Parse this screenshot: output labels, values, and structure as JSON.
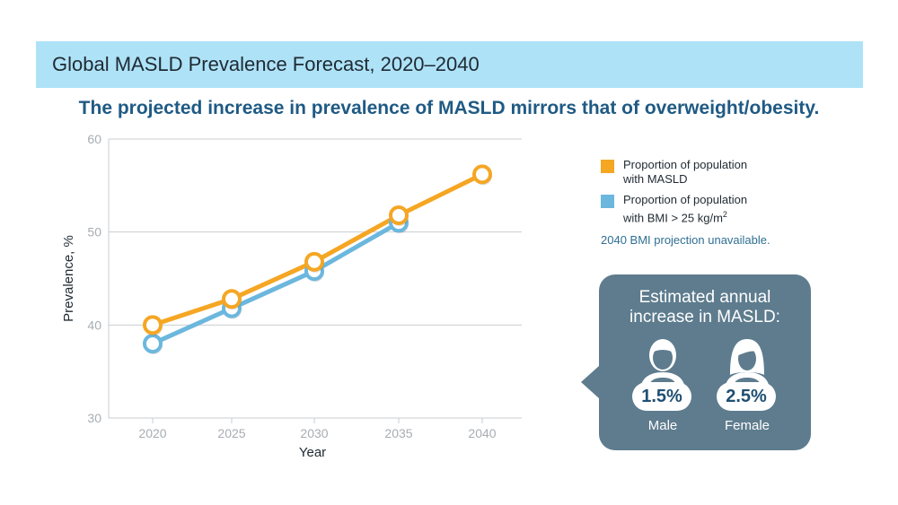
{
  "header": {
    "title": "Global MASLD Prevalence Forecast, 2020–2040",
    "subtitle": "The projected increase in prevalence of MASLD mirrors that of overweight/obesity."
  },
  "colors": {
    "title_bg": "#aee2f7",
    "masld": "#f5a623",
    "bmi": "#6bb7de",
    "callout_bg": "#5e7c8e"
  },
  "chart_data": {
    "type": "line",
    "xlabel": "Year",
    "ylabel": "Prevalence, %",
    "x": [
      2020,
      2025,
      2030,
      2035,
      2040
    ],
    "ylim": [
      30,
      60
    ],
    "yticks": [
      30,
      40,
      50,
      60
    ],
    "grid": true,
    "legend_position": "right",
    "series": [
      {
        "name": "Proportion of population with MASLD",
        "color": "#f5a623",
        "values": [
          40.0,
          42.8,
          46.8,
          51.8,
          56.2
        ]
      },
      {
        "name": "Proportion of population with BMI > 25 kg/m²",
        "color": "#6bb7de",
        "values": [
          38.0,
          41.8,
          45.8,
          51.0,
          null
        ]
      }
    ],
    "note": "2040 BMI projection unavailable."
  },
  "legend": {
    "items": [
      {
        "label_line1": "Proportion of population",
        "label_line2": "with MASLD",
        "color": "#f5a623"
      },
      {
        "label_line1": "Proportion of population",
        "label_line2": "with BMI > 25 kg/m",
        "sup": "2",
        "color": "#6bb7de"
      }
    ],
    "note": "2040 BMI projection unavailable."
  },
  "callout": {
    "heading_line1": "Estimated annual",
    "heading_line2": "increase in MASLD:",
    "male": {
      "value": "1.5%",
      "label": "Male"
    },
    "female": {
      "value": "2.5%",
      "label": "Female"
    }
  }
}
